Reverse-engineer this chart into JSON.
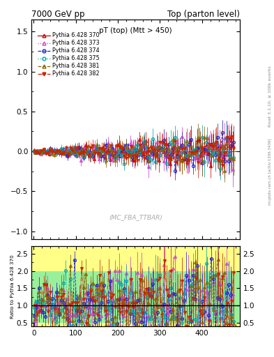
{
  "title_left": "7000 GeV pp",
  "title_right": "Top (parton level)",
  "plot_label": "pT (top) (Mtt > 450)",
  "watermark": "(MC_FBA_TTBAR)",
  "right_label_top": "Rivet 3.1.10, ≥ 100k events",
  "right_label_bottom": "mcplots.cern.ch [arXiv:1306.3436]",
  "ylabel_ratio": "Ratio to Pythia 6.428 370",
  "ylim_main": [
    -1.1,
    1.65
  ],
  "ylim_ratio": [
    0.38,
    2.72
  ],
  "xlim": [
    -5,
    490
  ],
  "xticks": [
    0,
    100,
    200,
    300,
    400
  ],
  "yticks_main": [
    -1.0,
    -0.5,
    0.0,
    0.5,
    1.0,
    1.5
  ],
  "yticks_ratio": [
    0.5,
    1.0,
    1.5,
    2.0,
    2.5
  ],
  "series": [
    {
      "label": "Pythia 6.428 370",
      "color": "#cc0000",
      "marker": "^",
      "linestyle": "-",
      "fillstyle": "none"
    },
    {
      "label": "Pythia 6.428 373",
      "color": "#cc44cc",
      "marker": "^",
      "linestyle": ":",
      "fillstyle": "none"
    },
    {
      "label": "Pythia 6.428 374",
      "color": "#2222cc",
      "marker": "o",
      "linestyle": "--",
      "fillstyle": "none"
    },
    {
      "label": "Pythia 6.428 375",
      "color": "#00aaaa",
      "marker": "o",
      "linestyle": ":",
      "fillstyle": "none"
    },
    {
      "label": "Pythia 6.428 381",
      "color": "#886600",
      "marker": "^",
      "linestyle": "--",
      "fillstyle": "none"
    },
    {
      "label": "Pythia 6.428 382",
      "color": "#cc2200",
      "marker": "v",
      "linestyle": "-.",
      "fillstyle": "full"
    }
  ],
  "n_points": 90,
  "x_max": 475,
  "bg_main": "#ffffff",
  "bg_ratio": "#ffffff"
}
